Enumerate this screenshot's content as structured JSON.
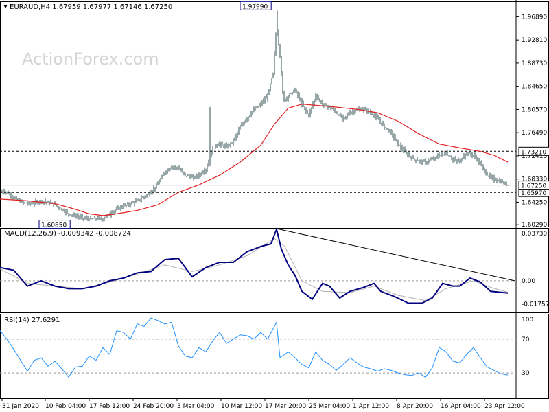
{
  "header": {
    "title": "EURAUD,H4  1.67959 1.67977 1.67146 1.67250"
  },
  "watermark": "ActionForex.com",
  "colors": {
    "candle": "#2f4f4f",
    "ma": "#e02020",
    "macd": "#000080",
    "signal": "#b0b0b0",
    "rsi": "#1e90ff",
    "trendline": "#000000",
    "label_box": "#000080"
  },
  "chart_data": [
    {
      "type": "line",
      "title": "EURAUD,H4",
      "ohlc_label": "1.67959 1.67977 1.67146 1.67250",
      "ylim": [
        1.5995,
        1.996
      ],
      "y_ticks": [
        "1.96890",
        "1.92810",
        "1.88730",
        "1.84650",
        "1.80570",
        "1.76490",
        "1.72410",
        "1.68330",
        "1.64250",
        "1.60290"
      ],
      "x_labels": [
        "31 Jan 2020",
        "10 Feb 04:00",
        "17 Feb 12:00",
        "24 Feb 20:00",
        "3 Mar 04:00",
        "10 Mar 12:00",
        "17 Mar 20:00",
        "25 Mar 04:00",
        "1 Apr 12:00",
        "8 Apr 20:00",
        "16 Apr 04:00",
        "23 Apr 12:00"
      ],
      "annotations": {
        "high_label": "1.97990",
        "low_label": "1.60850"
      },
      "levels": [
        {
          "label": "1.73210",
          "value": 1.7321
        },
        {
          "label": "1.65970",
          "value": 1.6597
        }
      ],
      "current": {
        "label": "1.67250",
        "value": 1.6725
      },
      "series": [
        {
          "kind": "price",
          "points": [
            [
              0,
              1.662
            ],
            [
              10,
              1.66
            ],
            [
              20,
              1.65
            ],
            [
              30,
              1.643
            ],
            [
              40,
              1.64
            ],
            [
              50,
              1.641
            ],
            [
              60,
              1.645
            ],
            [
              70,
              1.642
            ],
            [
              80,
              1.638
            ],
            [
              90,
              1.63
            ],
            [
              100,
              1.622
            ],
            [
              110,
              1.618
            ],
            [
              120,
              1.615
            ],
            [
              130,
              1.613
            ],
            [
              140,
              1.614
            ],
            [
              150,
              1.613
            ],
            [
              160,
              1.622
            ],
            [
              170,
              1.63
            ],
            [
              180,
              1.636
            ],
            [
              190,
              1.64
            ],
            [
              200,
              1.645
            ],
            [
              210,
              1.652
            ],
            [
              220,
              1.66
            ],
            [
              230,
              1.675
            ],
            [
              240,
              1.695
            ],
            [
              250,
              1.705
            ],
            [
              260,
              1.703
            ],
            [
              270,
              1.69
            ],
            [
              280,
              1.686
            ],
            [
              290,
              1.69
            ],
            [
              300,
              1.7
            ],
            [
              305,
              1.715
            ],
            [
              310,
              1.74
            ],
            [
              320,
              1.745
            ],
            [
              330,
              1.74
            ],
            [
              340,
              1.75
            ],
            [
              350,
              1.775
            ],
            [
              360,
              1.79
            ],
            [
              370,
              1.805
            ],
            [
              380,
              1.815
            ],
            [
              390,
              1.83
            ],
            [
              398,
              1.87
            ],
            [
              403,
              1.955
            ],
            [
              408,
              1.9
            ],
            [
              413,
              1.82
            ],
            [
              420,
              1.83
            ],
            [
              430,
              1.84
            ],
            [
              440,
              1.815
            ],
            [
              450,
              1.795
            ],
            [
              460,
              1.83
            ],
            [
              470,
              1.815
            ],
            [
              480,
              1.81
            ],
            [
              490,
              1.8
            ],
            [
              500,
              1.79
            ],
            [
              510,
              1.8
            ],
            [
              520,
              1.805
            ],
            [
              530,
              1.806
            ],
            [
              540,
              1.8
            ],
            [
              550,
              1.79
            ],
            [
              560,
              1.775
            ],
            [
              570,
              1.765
            ],
            [
              580,
              1.745
            ],
            [
              590,
              1.73
            ],
            [
              600,
              1.72
            ],
            [
              610,
              1.715
            ],
            [
              620,
              1.713
            ],
            [
              630,
              1.718
            ],
            [
              640,
              1.725
            ],
            [
              650,
              1.728
            ],
            [
              660,
              1.718
            ],
            [
              670,
              1.714
            ],
            [
              680,
              1.73
            ],
            [
              690,
              1.725
            ],
            [
              700,
              1.71
            ],
            [
              710,
              1.69
            ],
            [
              720,
              1.683
            ],
            [
              730,
              1.678
            ],
            [
              740,
              1.6725
            ]
          ]
        },
        {
          "kind": "moving_average",
          "points": [
            [
              0,
              1.648
            ],
            [
              40,
              1.645
            ],
            [
              80,
              1.64
            ],
            [
              110,
              1.63
            ],
            [
              130,
              1.622
            ],
            [
              150,
              1.619
            ],
            [
              170,
              1.622
            ],
            [
              200,
              1.628
            ],
            [
              230,
              1.638
            ],
            [
              260,
              1.66
            ],
            [
              290,
              1.673
            ],
            [
              320,
              1.69
            ],
            [
              350,
              1.713
            ],
            [
              380,
              1.743
            ],
            [
              400,
              1.78
            ],
            [
              420,
              1.808
            ],
            [
              440,
              1.815
            ],
            [
              480,
              1.811
            ],
            [
              520,
              1.806
            ],
            [
              550,
              1.8
            ],
            [
              580,
              1.785
            ],
            [
              610,
              1.763
            ],
            [
              640,
              1.745
            ],
            [
              670,
              1.738
            ],
            [
              700,
              1.732
            ],
            [
              720,
              1.725
            ],
            [
              740,
              1.713
            ]
          ]
        }
      ]
    },
    {
      "type": "line",
      "title": "MACD(12,26,9)",
      "values_label": "-0.009342 -0.008724",
      "ylim": [
        -0.024,
        0.04
      ],
      "y_ticks": [
        "0.037301",
        "0.00",
        "-0.017577"
      ],
      "series": [
        {
          "kind": "macd",
          "points": [
            [
              0,
              0.01
            ],
            [
              20,
              0.008
            ],
            [
              40,
              -0.004
            ],
            [
              60,
              0.0
            ],
            [
              80,
              -0.004
            ],
            [
              100,
              -0.006
            ],
            [
              120,
              -0.006
            ],
            [
              140,
              -0.004
            ],
            [
              160,
              0.0
            ],
            [
              180,
              0.002
            ],
            [
              200,
              0.006
            ],
            [
              220,
              0.007
            ],
            [
              240,
              0.016
            ],
            [
              260,
              0.017
            ],
            [
              280,
              0.003
            ],
            [
              300,
              0.01
            ],
            [
              320,
              0.014
            ],
            [
              340,
              0.014
            ],
            [
              360,
              0.022
            ],
            [
              380,
              0.026
            ],
            [
              395,
              0.028
            ],
            [
              403,
              0.039
            ],
            [
              410,
              0.024
            ],
            [
              420,
              0.012
            ],
            [
              430,
              0.004
            ],
            [
              440,
              -0.008
            ],
            [
              455,
              -0.014
            ],
            [
              470,
              -0.002
            ],
            [
              480,
              -0.004
            ],
            [
              495,
              -0.013
            ],
            [
              510,
              -0.008
            ],
            [
              530,
              -0.005
            ],
            [
              545,
              -0.002
            ],
            [
              555,
              -0.008
            ],
            [
              575,
              -0.012
            ],
            [
              595,
              -0.017
            ],
            [
              615,
              -0.017
            ],
            [
              630,
              -0.013
            ],
            [
              645,
              -0.002
            ],
            [
              660,
              -0.004
            ],
            [
              670,
              -0.004
            ],
            [
              685,
              0.002
            ],
            [
              700,
              -0.001
            ],
            [
              715,
              -0.008
            ],
            [
              740,
              -0.0093
            ]
          ]
        },
        {
          "kind": "signal",
          "points": [
            [
              0,
              0.009
            ],
            [
              40,
              -0.002
            ],
            [
              80,
              -0.004
            ],
            [
              120,
              -0.006
            ],
            [
              160,
              -0.001
            ],
            [
              200,
              0.005
            ],
            [
              240,
              0.012
            ],
            [
              280,
              0.007
            ],
            [
              320,
              0.012
            ],
            [
              360,
              0.019
            ],
            [
              400,
              0.032
            ],
            [
              415,
              0.026
            ],
            [
              440,
              0.0
            ],
            [
              470,
              -0.008
            ],
            [
              510,
              -0.009
            ],
            [
              545,
              -0.004
            ],
            [
              580,
              -0.011
            ],
            [
              620,
              -0.015
            ],
            [
              650,
              -0.006
            ],
            [
              690,
              0.0
            ],
            [
              715,
              -0.005
            ],
            [
              740,
              -0.0087
            ]
          ]
        },
        {
          "kind": "trendline",
          "points": [
            [
              403,
              0.0395
            ],
            [
              750,
              0.0
            ]
          ]
        }
      ]
    },
    {
      "type": "line",
      "title": "RSI(14)",
      "values_label": "27.6291",
      "ylim": [
        0,
        100
      ],
      "y_ticks": [
        "100",
        "70",
        "30"
      ],
      "series": [
        {
          "kind": "rsi",
          "points": [
            [
              0,
              80
            ],
            [
              10,
              70
            ],
            [
              20,
              58
            ],
            [
              30,
              45
            ],
            [
              40,
              32
            ],
            [
              50,
              45
            ],
            [
              60,
              48
            ],
            [
              70,
              38
            ],
            [
              80,
              44
            ],
            [
              90,
              35
            ],
            [
              100,
              25
            ],
            [
              110,
              37
            ],
            [
              120,
              38
            ],
            [
              130,
              50
            ],
            [
              140,
              45
            ],
            [
              150,
              60
            ],
            [
              160,
              52
            ],
            [
              170,
              80
            ],
            [
              180,
              78
            ],
            [
              190,
              70
            ],
            [
              200,
              88
            ],
            [
              210,
              85
            ],
            [
              220,
              95
            ],
            [
              230,
              92
            ],
            [
              240,
              88
            ],
            [
              250,
              90
            ],
            [
              260,
              62
            ],
            [
              270,
              50
            ],
            [
              280,
              48
            ],
            [
              290,
              60
            ],
            [
              300,
              55
            ],
            [
              310,
              68
            ],
            [
              320,
              78
            ],
            [
              330,
              65
            ],
            [
              340,
              70
            ],
            [
              350,
              75
            ],
            [
              360,
              74
            ],
            [
              370,
              70
            ],
            [
              380,
              78
            ],
            [
              390,
              70
            ],
            [
              403,
              90
            ],
            [
              408,
              48
            ],
            [
              420,
              55
            ],
            [
              430,
              48
            ],
            [
              440,
              40
            ],
            [
              450,
              36
            ],
            [
              460,
              55
            ],
            [
              470,
              45
            ],
            [
              480,
              40
            ],
            [
              490,
              33
            ],
            [
              500,
              40
            ],
            [
              510,
              48
            ],
            [
              520,
              42
            ],
            [
              530,
              37
            ],
            [
              540,
              35
            ],
            [
              550,
              32
            ],
            [
              560,
              35
            ],
            [
              570,
              33
            ],
            [
              580,
              30
            ],
            [
              590,
              28
            ],
            [
              600,
              27
            ],
            [
              610,
              30
            ],
            [
              620,
              25
            ],
            [
              630,
              36
            ],
            [
              640,
              60
            ],
            [
              650,
              55
            ],
            [
              660,
              44
            ],
            [
              670,
              42
            ],
            [
              680,
              52
            ],
            [
              690,
              60
            ],
            [
              700,
              48
            ],
            [
              710,
              37
            ],
            [
              720,
              33
            ],
            [
              730,
              29
            ],
            [
              740,
              27.6
            ]
          ]
        }
      ]
    }
  ]
}
